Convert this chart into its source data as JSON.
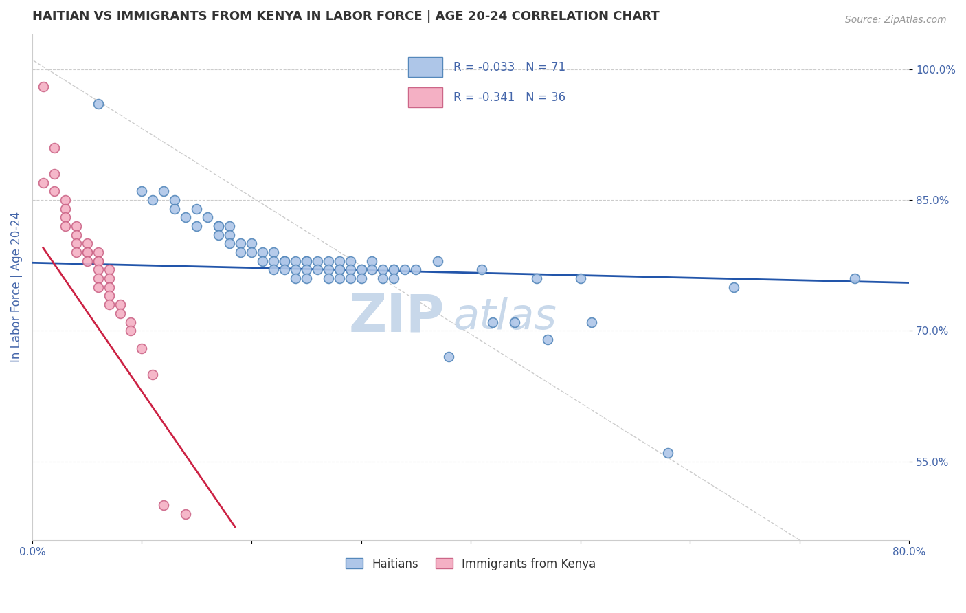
{
  "title": "HAITIAN VS IMMIGRANTS FROM KENYA IN LABOR FORCE | AGE 20-24 CORRELATION CHART",
  "source_text": "Source: ZipAtlas.com",
  "ylabel": "In Labor Force | Age 20-24",
  "xlim": [
    0.0,
    0.8
  ],
  "ylim": [
    0.46,
    1.04
  ],
  "ytick_vals": [
    0.55,
    0.7,
    0.85,
    1.0
  ],
  "ytick_labels": [
    "55.0%",
    "70.0%",
    "85.0%",
    "100.0%"
  ],
  "xtick_vals": [
    0.0,
    0.1,
    0.2,
    0.3,
    0.4,
    0.5,
    0.6,
    0.7,
    0.8
  ],
  "xtick_labels": [
    "0.0%",
    "",
    "",
    "",
    "",
    "",
    "",
    "",
    "80.0%"
  ],
  "haitian_x": [
    0.06,
    0.1,
    0.11,
    0.12,
    0.13,
    0.13,
    0.14,
    0.15,
    0.15,
    0.16,
    0.17,
    0.17,
    0.17,
    0.18,
    0.18,
    0.18,
    0.19,
    0.19,
    0.2,
    0.2,
    0.21,
    0.21,
    0.22,
    0.22,
    0.22,
    0.23,
    0.23,
    0.23,
    0.24,
    0.24,
    0.24,
    0.25,
    0.25,
    0.25,
    0.25,
    0.26,
    0.26,
    0.27,
    0.27,
    0.27,
    0.28,
    0.28,
    0.28,
    0.28,
    0.29,
    0.29,
    0.29,
    0.3,
    0.3,
    0.3,
    0.31,
    0.31,
    0.32,
    0.32,
    0.33,
    0.33,
    0.33,
    0.34,
    0.35,
    0.37,
    0.38,
    0.41,
    0.42,
    0.44,
    0.46,
    0.47,
    0.5,
    0.51,
    0.58,
    0.64,
    0.75
  ],
  "haitian_y": [
    0.96,
    0.86,
    0.85,
    0.86,
    0.85,
    0.84,
    0.83,
    0.82,
    0.84,
    0.83,
    0.82,
    0.82,
    0.81,
    0.82,
    0.81,
    0.8,
    0.8,
    0.79,
    0.8,
    0.79,
    0.79,
    0.78,
    0.79,
    0.78,
    0.77,
    0.78,
    0.78,
    0.77,
    0.78,
    0.77,
    0.76,
    0.78,
    0.78,
    0.77,
    0.76,
    0.78,
    0.77,
    0.78,
    0.77,
    0.76,
    0.78,
    0.77,
    0.77,
    0.76,
    0.78,
    0.77,
    0.76,
    0.77,
    0.77,
    0.76,
    0.78,
    0.77,
    0.77,
    0.76,
    0.77,
    0.77,
    0.76,
    0.77,
    0.77,
    0.78,
    0.67,
    0.77,
    0.71,
    0.71,
    0.76,
    0.69,
    0.76,
    0.71,
    0.56,
    0.75,
    0.76
  ],
  "kenya_x": [
    0.01,
    0.01,
    0.02,
    0.02,
    0.02,
    0.03,
    0.03,
    0.03,
    0.03,
    0.04,
    0.04,
    0.04,
    0.04,
    0.05,
    0.05,
    0.05,
    0.05,
    0.06,
    0.06,
    0.06,
    0.06,
    0.06,
    0.06,
    0.07,
    0.07,
    0.07,
    0.07,
    0.07,
    0.08,
    0.08,
    0.09,
    0.09,
    0.1,
    0.11,
    0.12,
    0.14
  ],
  "kenya_y": [
    0.98,
    0.87,
    0.91,
    0.88,
    0.86,
    0.85,
    0.84,
    0.83,
    0.82,
    0.82,
    0.81,
    0.8,
    0.79,
    0.8,
    0.79,
    0.79,
    0.78,
    0.79,
    0.78,
    0.78,
    0.77,
    0.76,
    0.75,
    0.77,
    0.76,
    0.75,
    0.74,
    0.73,
    0.73,
    0.72,
    0.71,
    0.7,
    0.68,
    0.65,
    0.5,
    0.49
  ],
  "haitian_color": "#aec6e8",
  "haitian_edge_color": "#5588bb",
  "kenya_color": "#f4b0c4",
  "kenya_edge_color": "#cc6688",
  "trendline_haitian_color": "#2255aa",
  "trendline_kenya_color": "#cc2244",
  "ref_line_color": "#cccccc",
  "watermark_color": "#c8d8ea",
  "background_color": "#ffffff",
  "grid_color": "#cccccc",
  "title_color": "#333333",
  "axis_label_color": "#4466aa",
  "tick_label_color": "#4466aa",
  "legend_R_color": "#4466aa",
  "title_fontsize": 13,
  "axis_label_fontsize": 12,
  "tick_fontsize": 11,
  "legend_fontsize": 12,
  "marker_size": 100,
  "marker_linewidth": 1.2
}
